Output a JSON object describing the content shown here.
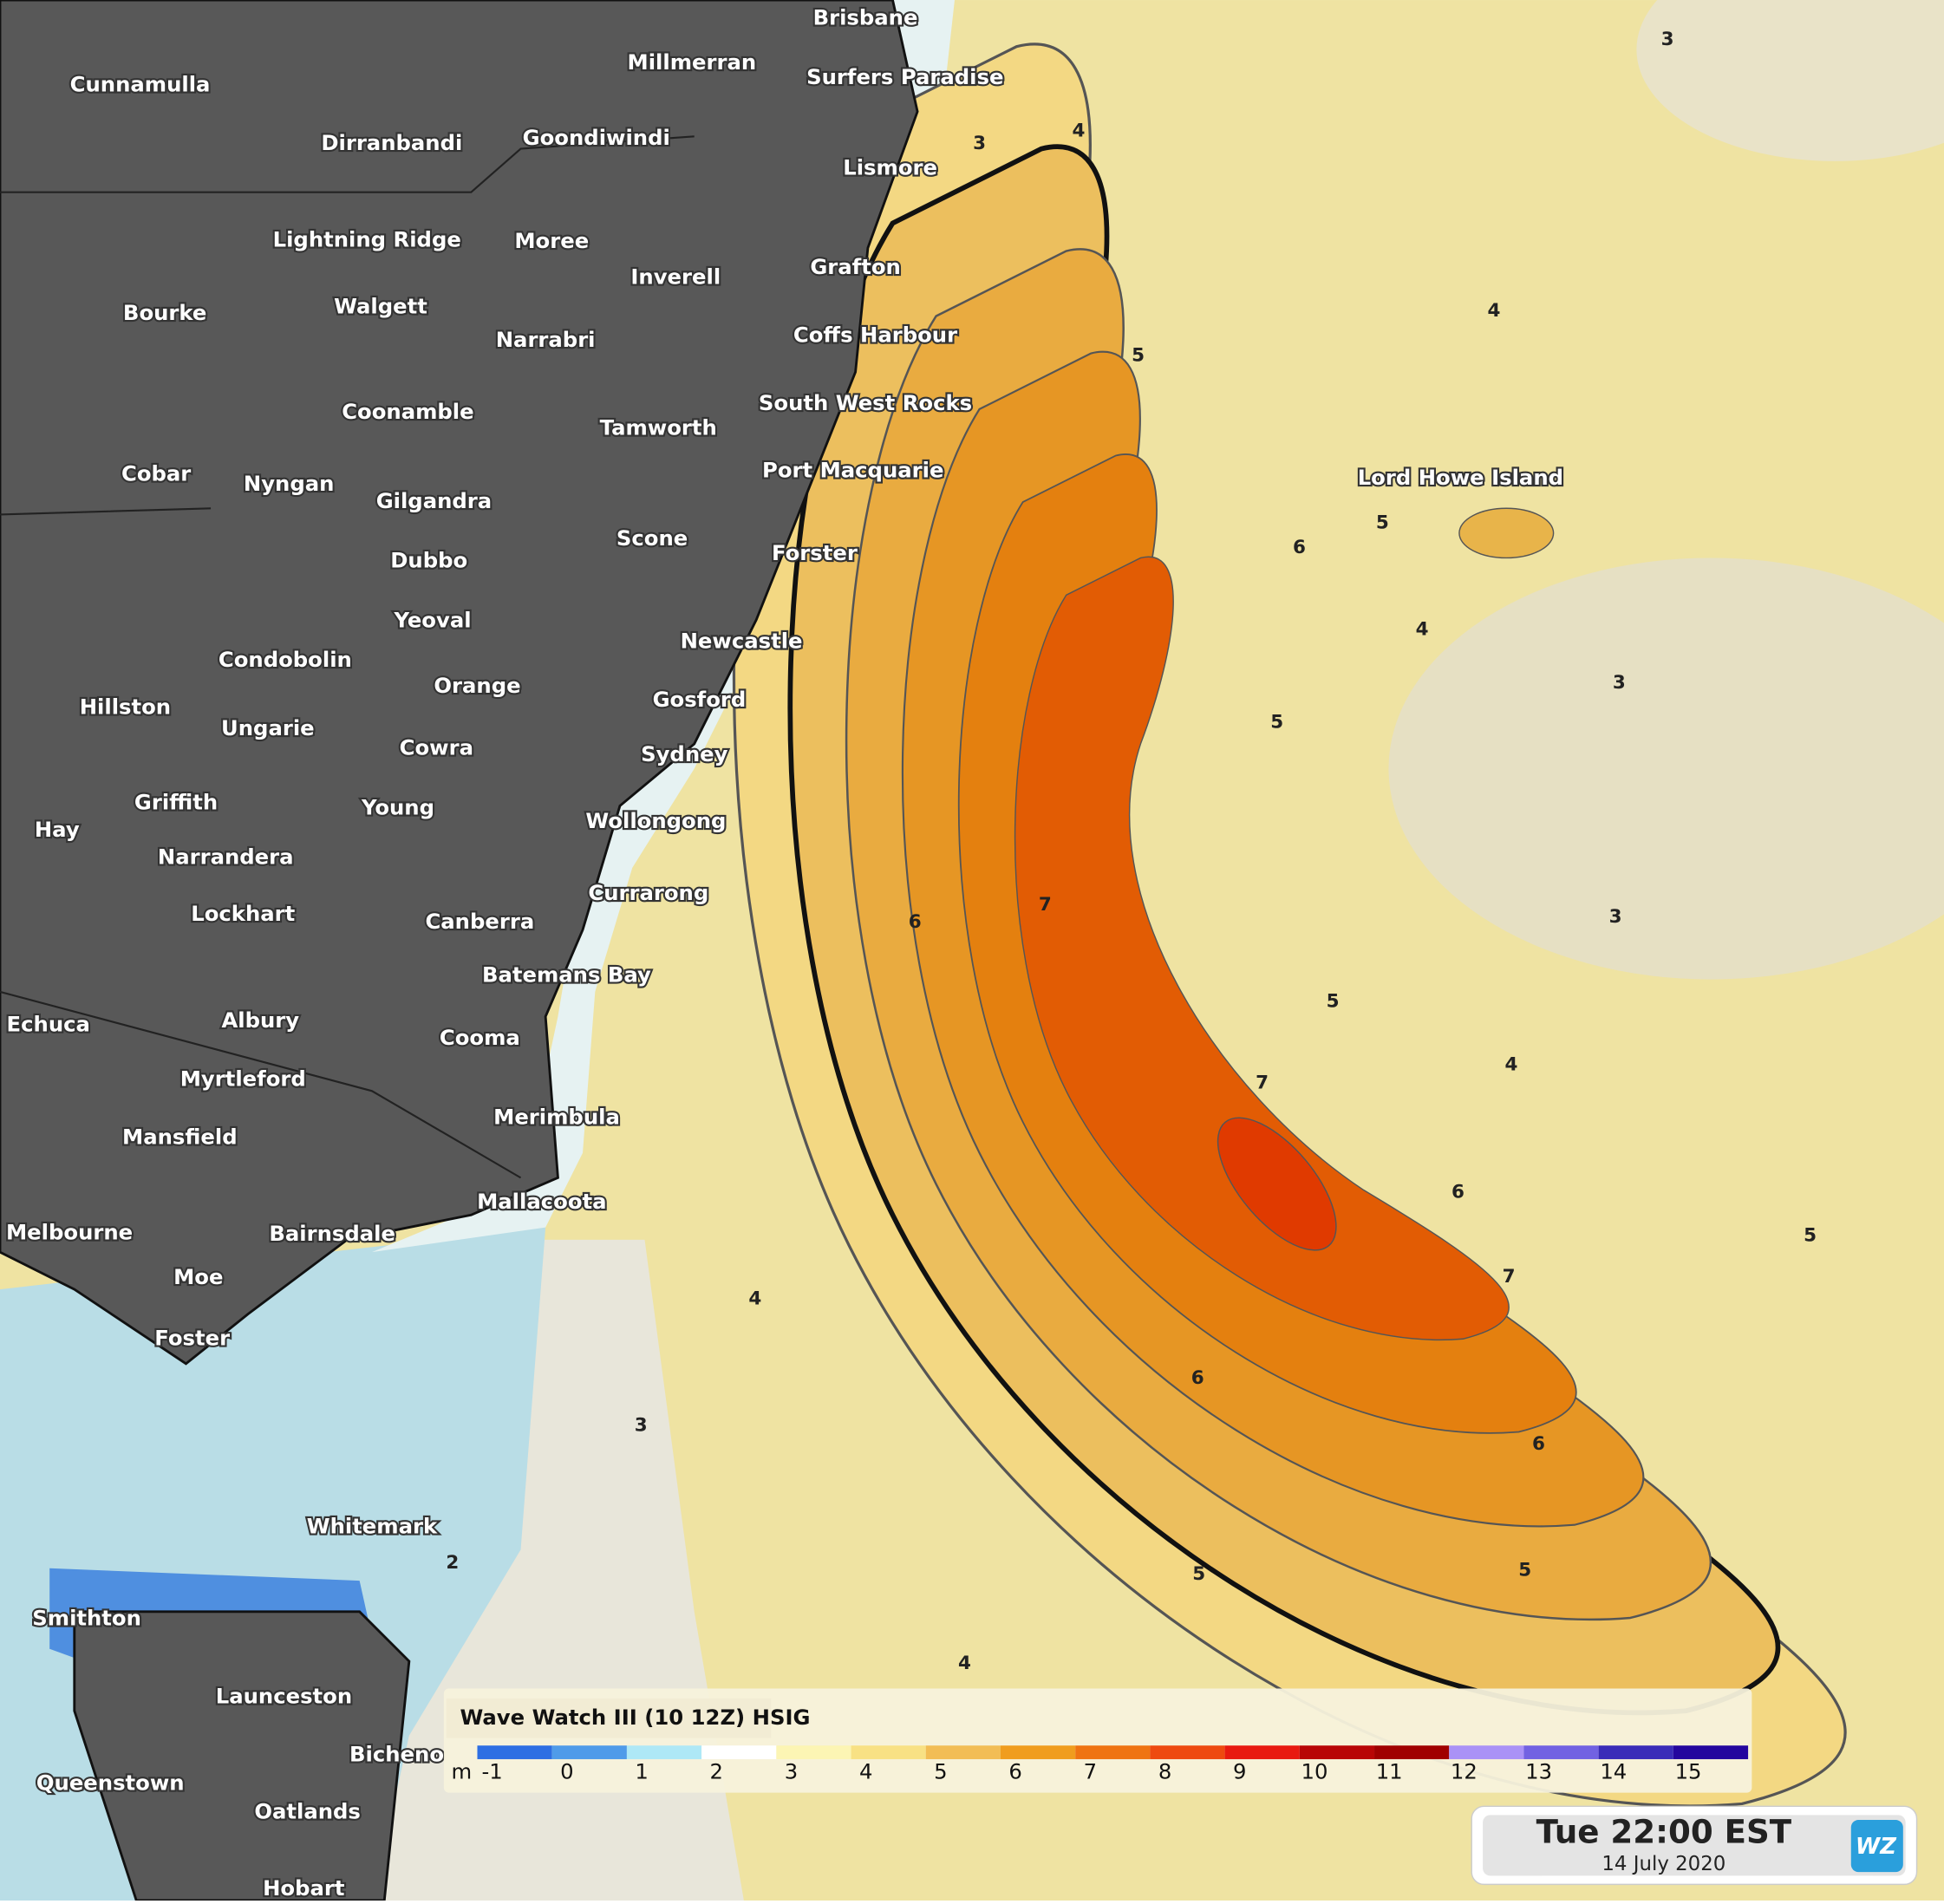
{
  "map": {
    "places": [
      "Brisbane",
      "Millmerran",
      "Surfers Paradise",
      "Cunnamulla",
      "Dirranbandi",
      "Goondiwindi",
      "Lismore",
      "Lightning Ridge",
      "Moree",
      "Inverell",
      "Grafton",
      "Bourke",
      "Walgett",
      "Narrabri",
      "Coffs Harbour",
      "Coonamble",
      "South West Rocks",
      "Tamworth",
      "Cobar",
      "Nyngan",
      "Gilgandra",
      "Port Macquarie",
      "Lord Howe Island",
      "Scone",
      "Dubbo",
      "Forster",
      "Yeoval",
      "Condobolin",
      "Newcastle",
      "Orange",
      "Hillston",
      "Ungarie",
      "Gosford",
      "Cowra",
      "Sydney",
      "Griffith",
      "Young",
      "Wollongong",
      "Hay",
      "Narrandera",
      "Currarong",
      "Lockhart",
      "Canberra",
      "Batemans Bay",
      "Echuca",
      "Albury",
      "Cooma",
      "Myrtleford",
      "Merimbula",
      "Mansfield",
      "Mallacoota",
      "Melbourne",
      "Bairnsdale",
      "Moe",
      "Foster",
      "Whitemark",
      "Smithton",
      "Launceston",
      "Bicheno",
      "Queenstown",
      "Oatlands",
      "Hobart"
    ],
    "contour_labels": [
      3,
      4,
      3,
      4,
      5,
      5,
      6,
      4,
      3,
      5,
      3,
      6,
      7,
      5,
      7,
      4,
      6,
      5,
      7,
      6,
      6,
      5,
      5,
      4,
      4,
      3,
      2
    ],
    "legend": {
      "title": "Wave Watch III (10 12Z) HSIG",
      "unit": "m",
      "ticks": [
        -1,
        0,
        1,
        2,
        3,
        4,
        5,
        6,
        7,
        8,
        9,
        10,
        11,
        12,
        13,
        14,
        15
      ],
      "colors": [
        "#2d6fe3",
        "#4f9be9",
        "#aee8f6",
        "#ffffff",
        "#fcf5b4",
        "#f8e184",
        "#f2bd55",
        "#f09d1e",
        "#ef7412",
        "#ee4a10",
        "#e81a10",
        "#b80606",
        "#a00000",
        "#aa92f6",
        "#7262e2",
        "#3a2cb8",
        "#24069e"
      ]
    },
    "time": {
      "main": "Tue 22:00 EST",
      "date": "14 July 2020",
      "logo": "WZ"
    }
  }
}
